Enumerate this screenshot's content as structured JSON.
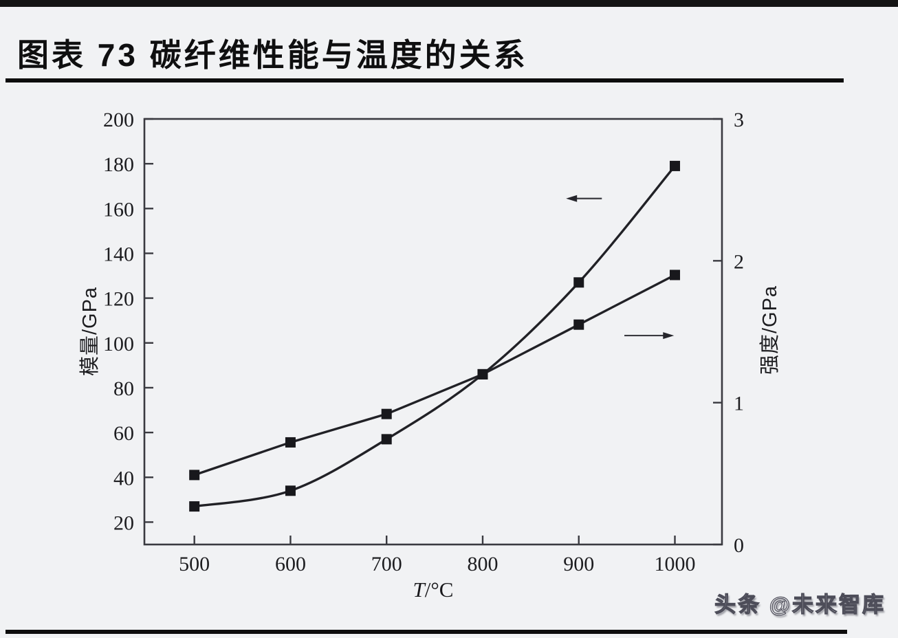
{
  "page": {
    "title": "图表 73 碳纤维性能与温度的关系",
    "watermark": "头条 @未来智库"
  },
  "chart_data": {
    "type": "line",
    "title": "图表 73 碳纤维性能与温度的关系",
    "xlabel": "T/°C",
    "xlabel_symbol": "T",
    "xlabel_unit": "/°C",
    "x": [
      500,
      600,
      700,
      800,
      900,
      1000
    ],
    "xlim": [
      448,
      1049
    ],
    "grid": false,
    "legend": "none",
    "colors": {
      "ink": "#212126",
      "marker": "#18181c",
      "axis": "#3a3a40"
    },
    "axes": {
      "left": {
        "label": "模量/GPa",
        "min": 10,
        "max": 200,
        "ticks": [
          20,
          40,
          60,
          80,
          100,
          120,
          140,
          160,
          180,
          200
        ]
      },
      "right": {
        "label": "强度/GPa",
        "min": 0,
        "max": 3,
        "ticks": [
          0,
          1,
          2,
          3
        ]
      }
    },
    "series": [
      {
        "name": "模量/GPa",
        "axis": "left",
        "marker": "square",
        "smooth": true,
        "values": [
          27,
          34,
          57,
          86,
          127,
          179
        ]
      },
      {
        "name": "强度/GPa",
        "axis": "right",
        "marker": "square",
        "smooth": false,
        "values": [
          0.49,
          0.72,
          0.92,
          1.2,
          1.55,
          1.9
        ]
      }
    ],
    "annotations": [
      {
        "type": "arrow",
        "direction": "left",
        "refers_to": "模量/GPa",
        "head_x_frac": 0.73,
        "tail_x_frac": 0.792,
        "y_frac": 0.187
      },
      {
        "type": "arrow",
        "direction": "right",
        "refers_to": "强度/GPa",
        "head_x_frac": 0.917,
        "tail_x_frac": 0.831,
        "y_frac": 0.509
      }
    ]
  }
}
